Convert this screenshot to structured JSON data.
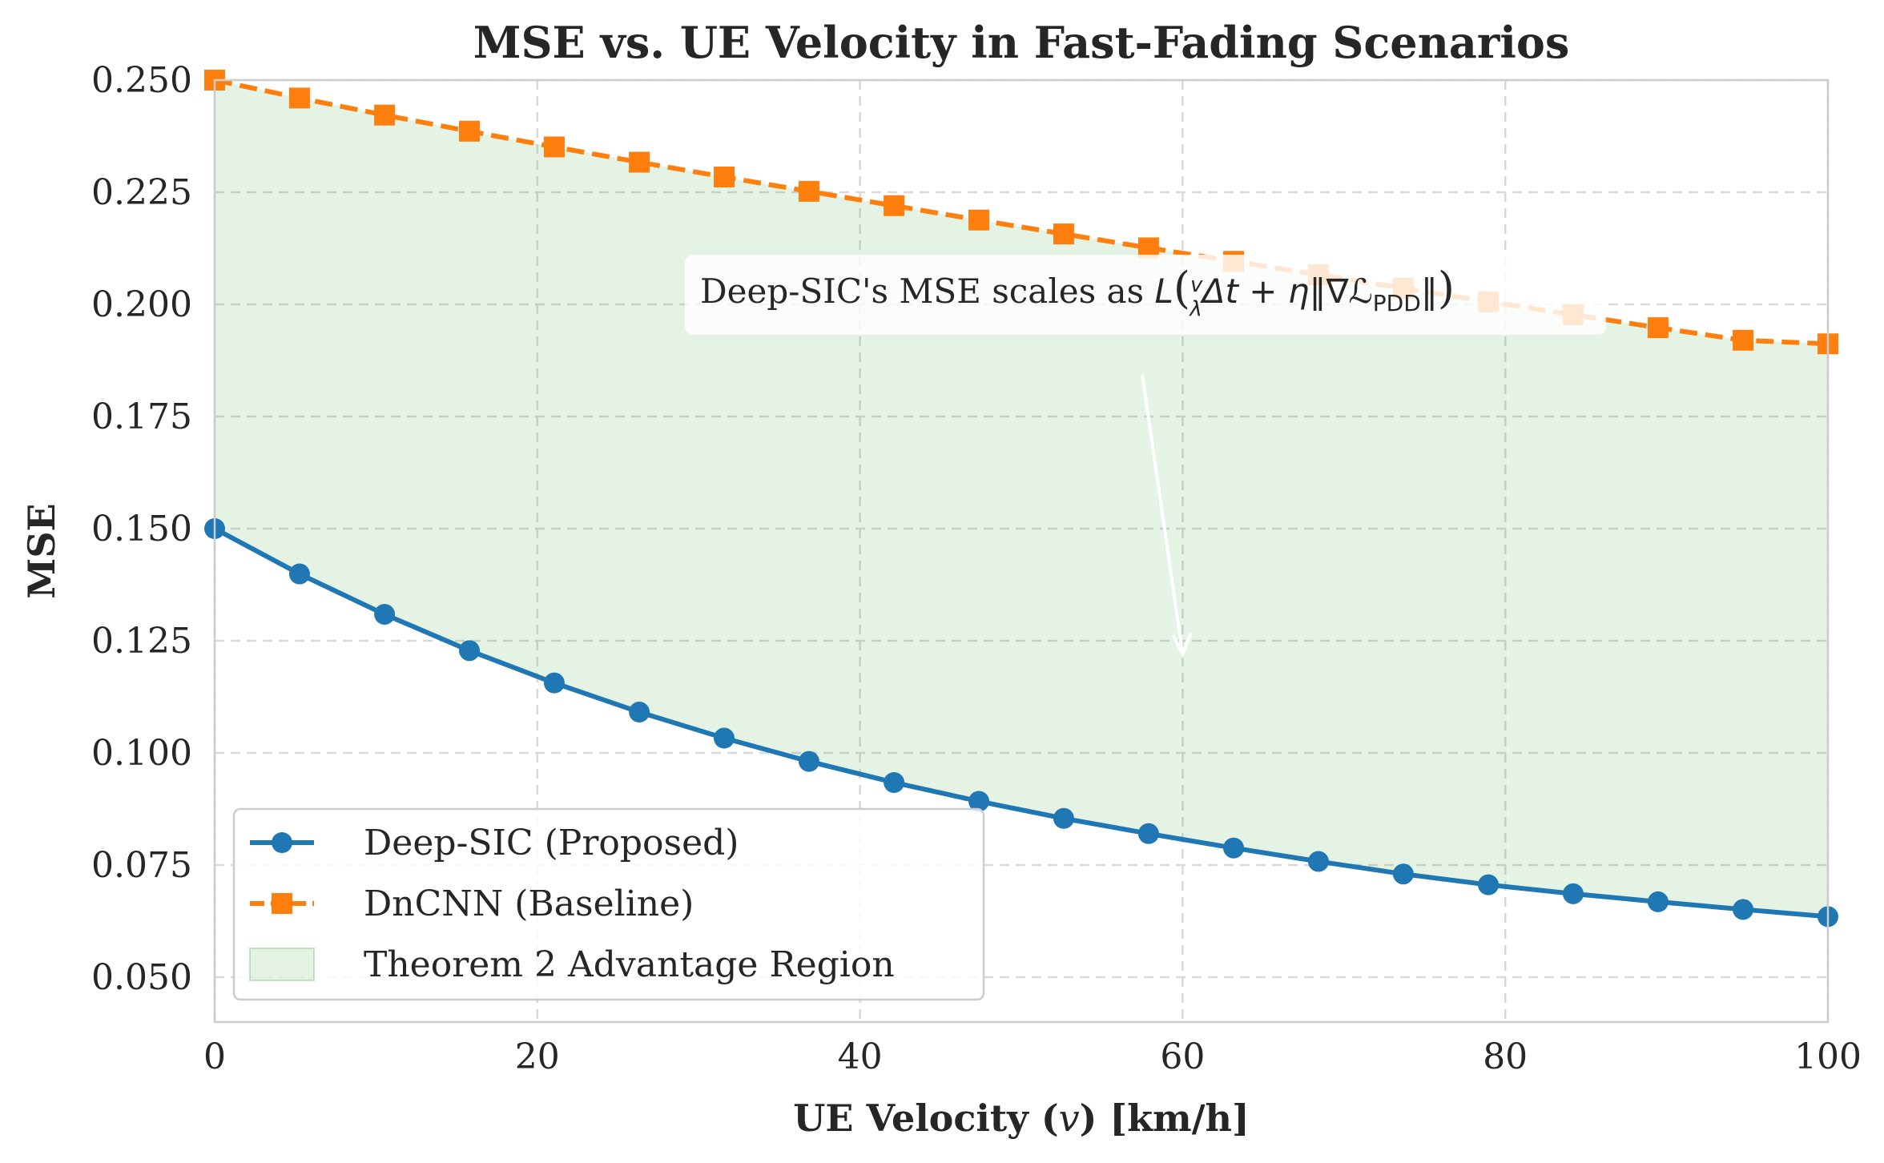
{
  "chart_data": {
    "type": "line",
    "title": "MSE vs. UE Velocity in Fast-Fading Scenarios",
    "xlabel_parts": [
      "UE Velocity (",
      "v",
      ") [km/h]"
    ],
    "ylabel": "MSE",
    "xlim": [
      0,
      100
    ],
    "ylim": [
      0.04,
      0.25
    ],
    "xticks": [
      0,
      20,
      40,
      60,
      80,
      100
    ],
    "xtick_labels": [
      "0",
      "20",
      "40",
      "60",
      "80",
      "100"
    ],
    "yticks": [
      0.05,
      0.075,
      0.1,
      0.125,
      0.15,
      0.175,
      0.2,
      0.225,
      0.25
    ],
    "ytick_labels": [
      "0.050",
      "0.075",
      "0.100",
      "0.125",
      "0.150",
      "0.175",
      "0.200",
      "0.225",
      "0.250"
    ],
    "grid": true,
    "legend_position": "lower-left",
    "x": [
      0,
      5.26,
      10.53,
      15.79,
      21.05,
      26.32,
      31.58,
      36.84,
      42.11,
      47.37,
      52.63,
      57.89,
      63.16,
      68.42,
      73.68,
      78.95,
      84.21,
      89.47,
      94.74,
      100
    ],
    "series": [
      {
        "name": "Deep-SIC (Proposed)",
        "color": "#1f77b4",
        "marker": "circle",
        "linestyle": "solid",
        "values": [
          0.15,
          0.1399,
          0.1309,
          0.1228,
          0.1156,
          0.1091,
          0.1033,
          0.0981,
          0.0934,
          0.0892,
          0.0854,
          0.082,
          0.0788,
          0.0758,
          0.073,
          0.0706,
          0.0686,
          0.0668,
          0.0651,
          0.0635
        ]
      },
      {
        "name": "DnCNN (Baseline)",
        "color": "#ff7f0e",
        "marker": "square",
        "linestyle": "dashed",
        "values": [
          0.25,
          0.246,
          0.2422,
          0.2386,
          0.2351,
          0.2317,
          0.2284,
          0.2252,
          0.222,
          0.2188,
          0.2157,
          0.2126,
          0.2096,
          0.2066,
          0.2036,
          0.2006,
          0.1977,
          0.1948,
          0.192,
          0.1912
        ]
      }
    ],
    "fill_region": {
      "name": "Theorem 2 Advantage Region",
      "color": "#2ca02c",
      "between": [
        "Deep-SIC (Proposed)",
        "DnCNN (Baseline)"
      ]
    },
    "annotation": {
      "text_prefix": "Deep-SIC's MSE scales as ",
      "L": "L",
      "v": "v",
      "lambda": "λ",
      "dt": "Δt + ",
      "eta": "η",
      "nabla": "∇",
      "script_L": "ℒ",
      "sub": "PDD",
      "open_paren": "(",
      "close_paren": ")",
      "norm_open": "‖",
      "norm_close": "‖",
      "arrow_from": [
        57.5,
        0.204
      ],
      "arrow_to": [
        60,
        0.122
      ]
    }
  }
}
